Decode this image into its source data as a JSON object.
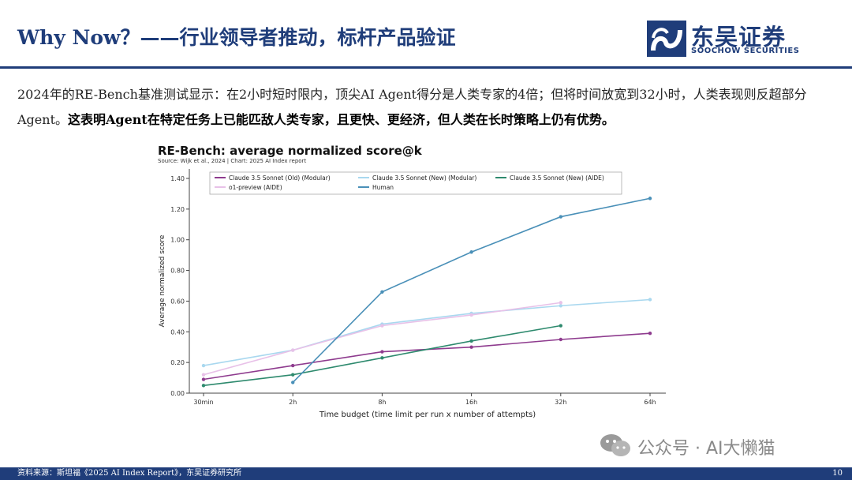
{
  "header": {
    "title": "Why Now？——行业领导者推动，标杆产品验证",
    "logo_name": "东吴证券",
    "logo_sub": "SOOCHOW SECURITIES"
  },
  "body": {
    "text_normal": "2024年的RE-Bench基准测试显示：在2小时短时限内，顶尖AI Agent得分是人类专家的4倍；但将时间放宽到32小时，人类表现则反超部分Agent。",
    "text_bold": "这表明Agent在特定任务上已能匹敌人类专家，且更快、更经济，但人类在长时策略上仍有优势。"
  },
  "chart_data": {
    "type": "line",
    "title": "RE-Bench: average normalized score@k",
    "subtitle": "Source: Wijk et al., 2024 | Chart: 2025 AI Index report",
    "xlabel": "Time budget (time limit per run x number of attempts)",
    "ylabel": "Average normalized score",
    "categories": [
      "30min",
      "2h",
      "8h",
      "16h",
      "32h",
      "64h"
    ],
    "yticks": [
      "0.00",
      "0.20",
      "0.40",
      "0.60",
      "0.80",
      "1.00",
      "1.20",
      "1.40"
    ],
    "ylim": [
      0,
      1.4
    ],
    "legend_position": "top",
    "series": [
      {
        "name": "Claude 3.5 Sonnet (Old) (Modular)",
        "color": "#8e3b8e",
        "values": [
          0.09,
          0.18,
          0.27,
          0.3,
          0.35,
          0.39
        ]
      },
      {
        "name": "Claude 3.5 Sonnet (New) (Modular)",
        "color": "#a9d8ef",
        "values": [
          0.18,
          0.28,
          0.45,
          0.52,
          0.57,
          0.61
        ]
      },
      {
        "name": "Claude 3.5 Sonnet (New) (AIDE)",
        "color": "#2e8a6e",
        "values": [
          0.05,
          0.12,
          0.23,
          0.34,
          0.44,
          null
        ]
      },
      {
        "name": "o1-preview (AIDE)",
        "color": "#e8c1e8",
        "values": [
          0.12,
          0.28,
          0.44,
          0.51,
          0.59,
          null
        ]
      },
      {
        "name": "Human",
        "color": "#4a90b8",
        "values": [
          null,
          0.07,
          0.66,
          0.92,
          1.15,
          1.27
        ]
      }
    ]
  },
  "footer": {
    "source": "资料来源：斯坦福《2025 AI Index Report》，东吴证券研究所",
    "page": "10"
  },
  "watermark": {
    "text": "公众号 · AI大懒猫"
  }
}
